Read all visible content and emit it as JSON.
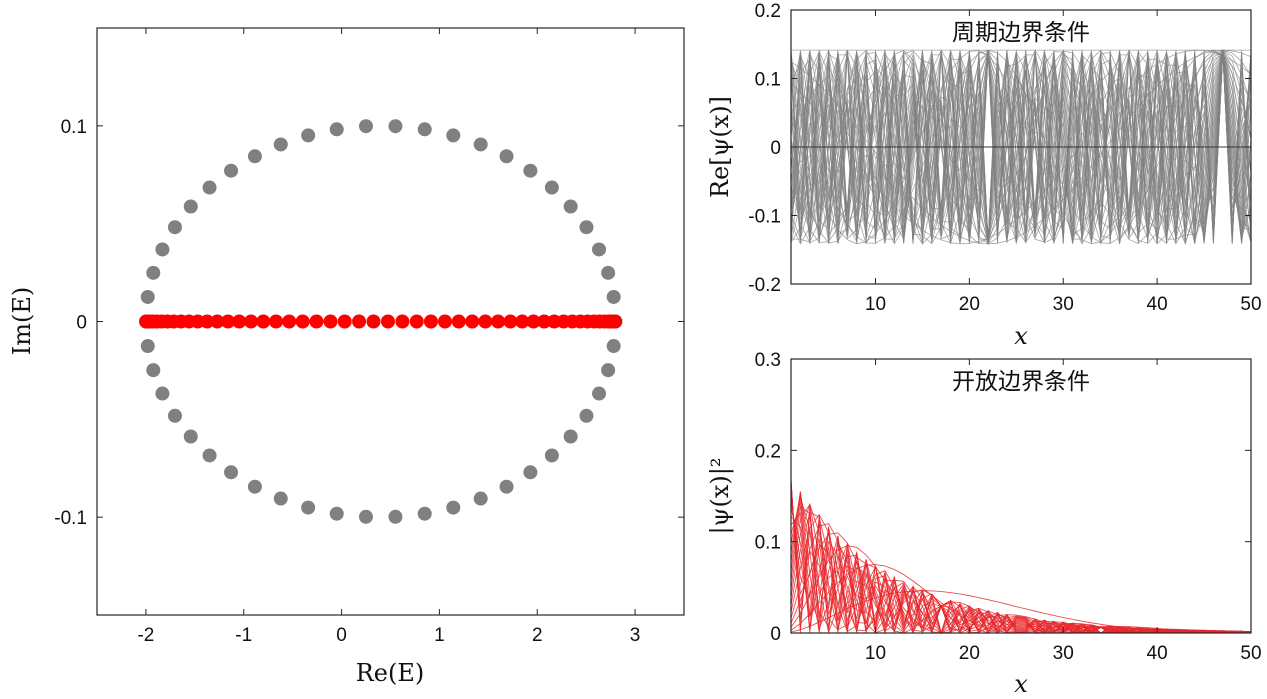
{
  "chart_data": [
    {
      "id": "spectrum",
      "type": "scatter",
      "xlabel": "Re(E)",
      "ylabel": "Im(E)",
      "xlim": [
        -2.5,
        3.5
      ],
      "ylim": [
        -0.15,
        0.15
      ],
      "xticks": [
        -2,
        -1,
        0,
        1,
        2,
        3
      ],
      "yticks": [
        -0.1,
        0,
        0.1
      ],
      "xtick_labels": [
        "-2",
        "-1",
        "0",
        "1",
        "2",
        "3"
      ],
      "ytick_labels": [
        "-0.1",
        "0",
        "0.1"
      ],
      "grid": false,
      "series": [
        {
          "color": "#808080",
          "marker": "circle",
          "model": "ellipse",
          "center_re": 0.4,
          "amp_re": 2.4,
          "amp_im": 0.1,
          "n_points": 50
        },
        {
          "color": "#ff0000",
          "marker": "circle",
          "model": "line",
          "center_re": 0.4,
          "amp_re": 2.4,
          "im": 0,
          "n_points": 50
        }
      ]
    },
    {
      "id": "periodic",
      "type": "line",
      "title": "周期边界条件",
      "xlabel": "x",
      "ylabel": "Re[ψ(x)]",
      "xlim": [
        1,
        50
      ],
      "ylim": [
        -0.2,
        0.2
      ],
      "xticks": [
        10,
        20,
        30,
        40,
        50
      ],
      "yticks": [
        -0.2,
        -0.1,
        0,
        0.1,
        0.2
      ],
      "xtick_labels": [
        "10",
        "20",
        "30",
        "40",
        "50"
      ],
      "ytick_labels": [
        "-0.2",
        "-0.1",
        "0",
        "0.1",
        "0.2"
      ],
      "line_color": "#808080",
      "amplitude": 0.1414,
      "n_modes": 50,
      "grid": false
    },
    {
      "id": "open",
      "type": "line",
      "title": "开放边界条件",
      "xlabel": "x",
      "ylabel": "|ψ(x)|²",
      "xlim": [
        1,
        50
      ],
      "ylim": [
        0,
        0.3
      ],
      "xticks": [
        10,
        20,
        30,
        40,
        50
      ],
      "yticks": [
        0,
        0.1,
        0.2,
        0.3
      ],
      "xtick_labels": [
        "10",
        "20",
        "30",
        "40",
        "50"
      ],
      "ytick_labels": [
        "0",
        "0.1",
        "0.2",
        "0.3"
      ],
      "line_color": "#e8262b",
      "decay_per_site": 0.955,
      "n_modes": 50,
      "grid": false
    }
  ]
}
